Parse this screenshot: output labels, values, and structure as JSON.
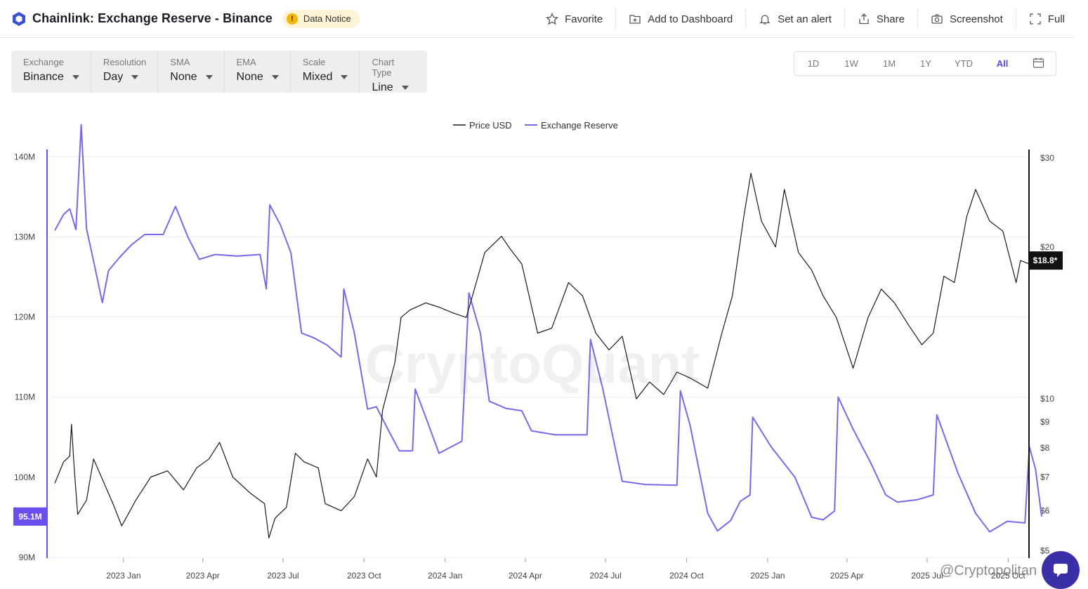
{
  "header": {
    "title": "Chainlink: Exchange Reserve - Binance",
    "notice": "Data Notice",
    "actions": [
      {
        "label": "Favorite",
        "icon": "star-icon"
      },
      {
        "label": "Add to Dashboard",
        "icon": "add-dashboard-icon"
      },
      {
        "label": "Set an alert",
        "icon": "bell-icon"
      },
      {
        "label": "Share",
        "icon": "share-icon"
      },
      {
        "label": "Screenshot",
        "icon": "camera-icon"
      },
      {
        "label": "Full",
        "icon": "fullscreen-icon"
      }
    ]
  },
  "controls": [
    {
      "label": "Exchange",
      "value": "Binance"
    },
    {
      "label": "Resolution",
      "value": "Day"
    },
    {
      "label": "SMA",
      "value": "None"
    },
    {
      "label": "EMA",
      "value": "None"
    },
    {
      "label": "Scale",
      "value": "Mixed"
    },
    {
      "label": "Chart Type",
      "value": "Line"
    }
  ],
  "ranges": {
    "items": [
      "1D",
      "1W",
      "1M",
      "1Y",
      "YTD",
      "All"
    ],
    "active": "All"
  },
  "colors": {
    "price": "#1a1a1a",
    "reserve": "#7b68e8",
    "accent": "#5a45e0",
    "badge_dark": "#111111"
  },
  "watermarks": {
    "center": "CryptoQuant",
    "corner": "@Cryptopolitan"
  },
  "chart_data": {
    "type": "line",
    "legend": [
      "Price USD",
      "Exchange Reserve"
    ],
    "x_ticks": [
      "2023 Jan",
      "2023 Apr",
      "2023 Jul",
      "2023 Oct",
      "2024 Jan",
      "2024 Apr",
      "2024 Jul",
      "2024 Oct",
      "2025 Jan",
      "2025 Apr",
      "2025 Jul",
      "2025 Oct"
    ],
    "left_axis": {
      "ticks": [
        "140M",
        "130M",
        "120M",
        "110M",
        "100M",
        "90M"
      ],
      "values": [
        140,
        130,
        120,
        110,
        100,
        90
      ],
      "range": [
        90,
        140.9
      ]
    },
    "right_axis": {
      "scale": "log",
      "ticks": [
        "$30",
        "$20",
        "$10",
        "$9",
        "$8",
        "$7",
        "$6",
        "$5"
      ],
      "values": [
        30,
        20,
        10,
        9,
        8,
        7,
        6,
        5
      ],
      "range": [
        4.85,
        31.2
      ]
    },
    "current_reserve": "95.1M",
    "current_price": "$18.8*",
    "series": [
      {
        "name": "Exchange Reserve",
        "unit": "M",
        "points": [
          [
            "2022-10-15",
            130.8
          ],
          [
            "2022-10-25",
            132.8
          ],
          [
            "2022-11-01",
            133.5
          ],
          [
            "2022-11-08",
            130.9
          ],
          [
            "2022-11-14",
            144.0
          ],
          [
            "2022-11-20",
            131.0
          ],
          [
            "2022-11-28",
            127.0
          ],
          [
            "2022-12-08",
            121.8
          ],
          [
            "2022-12-15",
            125.8
          ],
          [
            "2022-12-28",
            127.5
          ],
          [
            "2023-01-10",
            129.0
          ],
          [
            "2023-01-25",
            130.3
          ],
          [
            "2023-02-15",
            130.3
          ],
          [
            "2023-03-01",
            133.8
          ],
          [
            "2023-03-15",
            130.0
          ],
          [
            "2023-03-28",
            127.2
          ],
          [
            "2023-04-15",
            127.8
          ],
          [
            "2023-05-10",
            127.6
          ],
          [
            "2023-06-05",
            127.8
          ],
          [
            "2023-06-12",
            123.5
          ],
          [
            "2023-06-16",
            134.0
          ],
          [
            "2023-06-28",
            131.5
          ],
          [
            "2023-07-10",
            128.0
          ],
          [
            "2023-07-22",
            118.0
          ],
          [
            "2023-08-05",
            117.4
          ],
          [
            "2023-08-20",
            116.5
          ],
          [
            "2023-09-05",
            115.0
          ],
          [
            "2023-09-08",
            123.5
          ],
          [
            "2023-09-20",
            118.0
          ],
          [
            "2023-10-05",
            108.5
          ],
          [
            "2023-10-15",
            108.8
          ],
          [
            "2023-10-28",
            106.0
          ],
          [
            "2023-11-10",
            103.3
          ],
          [
            "2023-11-25",
            103.3
          ],
          [
            "2023-11-28",
            111.0
          ],
          [
            "2023-12-10",
            107.5
          ],
          [
            "2023-12-25",
            103.0
          ],
          [
            "2024-01-20",
            104.5
          ],
          [
            "2024-01-28",
            123.0
          ],
          [
            "2024-02-10",
            118.0
          ],
          [
            "2024-02-20",
            109.5
          ],
          [
            "2024-03-10",
            108.6
          ],
          [
            "2024-03-28",
            108.3
          ],
          [
            "2024-04-08",
            105.8
          ],
          [
            "2024-05-05",
            105.3
          ],
          [
            "2024-06-10",
            105.3
          ],
          [
            "2024-06-14",
            117.2
          ],
          [
            "2024-06-28",
            111.0
          ],
          [
            "2024-07-20",
            99.5
          ],
          [
            "2024-08-15",
            99.1
          ],
          [
            "2024-09-20",
            99.0
          ],
          [
            "2024-09-24",
            110.8
          ],
          [
            "2024-10-05",
            106.5
          ],
          [
            "2024-10-25",
            95.5
          ],
          [
            "2024-11-05",
            93.3
          ],
          [
            "2024-11-20",
            94.6
          ],
          [
            "2024-12-01",
            97.0
          ],
          [
            "2024-12-12",
            97.8
          ],
          [
            "2024-12-15",
            107.5
          ],
          [
            "2025-01-05",
            103.8
          ],
          [
            "2025-02-01",
            100.0
          ],
          [
            "2025-02-20",
            95.0
          ],
          [
            "2025-03-05",
            94.7
          ],
          [
            "2025-03-18",
            95.8
          ],
          [
            "2025-03-22",
            110.0
          ],
          [
            "2025-04-08",
            106.0
          ],
          [
            "2025-04-28",
            101.8
          ],
          [
            "2025-05-15",
            97.8
          ],
          [
            "2025-05-28",
            96.9
          ],
          [
            "2025-06-20",
            97.2
          ],
          [
            "2025-07-08",
            97.8
          ],
          [
            "2025-07-12",
            107.8
          ],
          [
            "2025-08-05",
            100.5
          ],
          [
            "2025-08-25",
            95.5
          ],
          [
            "2025-09-10",
            93.2
          ],
          [
            "2025-09-30",
            94.5
          ],
          [
            "2025-10-20",
            94.3
          ],
          [
            "2025-10-25",
            103.8
          ],
          [
            "2025-11-01",
            101.0
          ],
          [
            "2025-11-08",
            95.1
          ]
        ]
      },
      {
        "name": "Price USD",
        "unit": "$",
        "points": [
          [
            "2022-10-15",
            6.8
          ],
          [
            "2022-10-25",
            7.5
          ],
          [
            "2022-11-01",
            7.7
          ],
          [
            "2022-11-03",
            8.9
          ],
          [
            "2022-11-06",
            7.3
          ],
          [
            "2022-11-10",
            5.9
          ],
          [
            "2022-11-20",
            6.3
          ],
          [
            "2022-11-28",
            7.6
          ],
          [
            "2022-12-10",
            6.8
          ],
          [
            "2022-12-20",
            6.2
          ],
          [
            "2022-12-30",
            5.6
          ],
          [
            "2023-01-15",
            6.3
          ],
          [
            "2023-02-01",
            7.0
          ],
          [
            "2023-02-20",
            7.2
          ],
          [
            "2023-03-10",
            6.6
          ],
          [
            "2023-03-25",
            7.3
          ],
          [
            "2023-04-08",
            7.6
          ],
          [
            "2023-04-20",
            8.2
          ],
          [
            "2023-05-05",
            7.0
          ],
          [
            "2023-05-25",
            6.5
          ],
          [
            "2023-06-10",
            6.2
          ],
          [
            "2023-06-15",
            5.3
          ],
          [
            "2023-06-22",
            5.8
          ],
          [
            "2023-07-05",
            6.1
          ],
          [
            "2023-07-15",
            7.8
          ],
          [
            "2023-07-25",
            7.5
          ],
          [
            "2023-08-10",
            7.3
          ],
          [
            "2023-08-18",
            6.2
          ],
          [
            "2023-09-05",
            6.0
          ],
          [
            "2023-09-20",
            6.4
          ],
          [
            "2023-10-05",
            7.6
          ],
          [
            "2023-10-15",
            7.0
          ],
          [
            "2023-10-22",
            9.5
          ],
          [
            "2023-11-05",
            11.8
          ],
          [
            "2023-11-12",
            14.5
          ],
          [
            "2023-11-22",
            15.0
          ],
          [
            "2023-12-10",
            15.5
          ],
          [
            "2023-12-25",
            15.2
          ],
          [
            "2024-01-10",
            14.8
          ],
          [
            "2024-01-25",
            14.5
          ],
          [
            "2024-02-15",
            19.5
          ],
          [
            "2024-03-05",
            21.0
          ],
          [
            "2024-03-15",
            19.8
          ],
          [
            "2024-03-28",
            18.5
          ],
          [
            "2024-04-15",
            13.5
          ],
          [
            "2024-05-01",
            13.8
          ],
          [
            "2024-05-20",
            17.0
          ],
          [
            "2024-06-05",
            16.0
          ],
          [
            "2024-06-20",
            13.5
          ],
          [
            "2024-07-05",
            12.5
          ],
          [
            "2024-07-20",
            13.3
          ],
          [
            "2024-08-05",
            10.0
          ],
          [
            "2024-08-20",
            10.8
          ],
          [
            "2024-09-05",
            10.2
          ],
          [
            "2024-09-20",
            11.3
          ],
          [
            "2024-10-05",
            11.0
          ],
          [
            "2024-10-25",
            10.5
          ],
          [
            "2024-11-10",
            13.5
          ],
          [
            "2024-11-22",
            16.0
          ],
          [
            "2024-12-05",
            23.0
          ],
          [
            "2024-12-13",
            28.0
          ],
          [
            "2024-12-25",
            22.5
          ],
          [
            "2025-01-10",
            20.0
          ],
          [
            "2025-01-20",
            26.0
          ],
          [
            "2025-02-05",
            19.5
          ],
          [
            "2025-02-20",
            18.0
          ],
          [
            "2025-03-05",
            16.0
          ],
          [
            "2025-03-20",
            14.5
          ],
          [
            "2025-04-08",
            11.5
          ],
          [
            "2025-04-25",
            14.5
          ],
          [
            "2025-05-10",
            16.5
          ],
          [
            "2025-05-25",
            15.5
          ],
          [
            "2025-06-10",
            14.0
          ],
          [
            "2025-06-25",
            12.8
          ],
          [
            "2025-07-08",
            13.5
          ],
          [
            "2025-07-20",
            17.5
          ],
          [
            "2025-08-01",
            17.0
          ],
          [
            "2025-08-15",
            23.0
          ],
          [
            "2025-08-25",
            26.0
          ],
          [
            "2025-09-10",
            22.5
          ],
          [
            "2025-09-25",
            21.5
          ],
          [
            "2025-10-10",
            17.0
          ],
          [
            "2025-10-15",
            18.8
          ],
          [
            "2025-10-25",
            18.5
          ],
          [
            "2025-11-08",
            18.8
          ]
        ]
      }
    ]
  }
}
